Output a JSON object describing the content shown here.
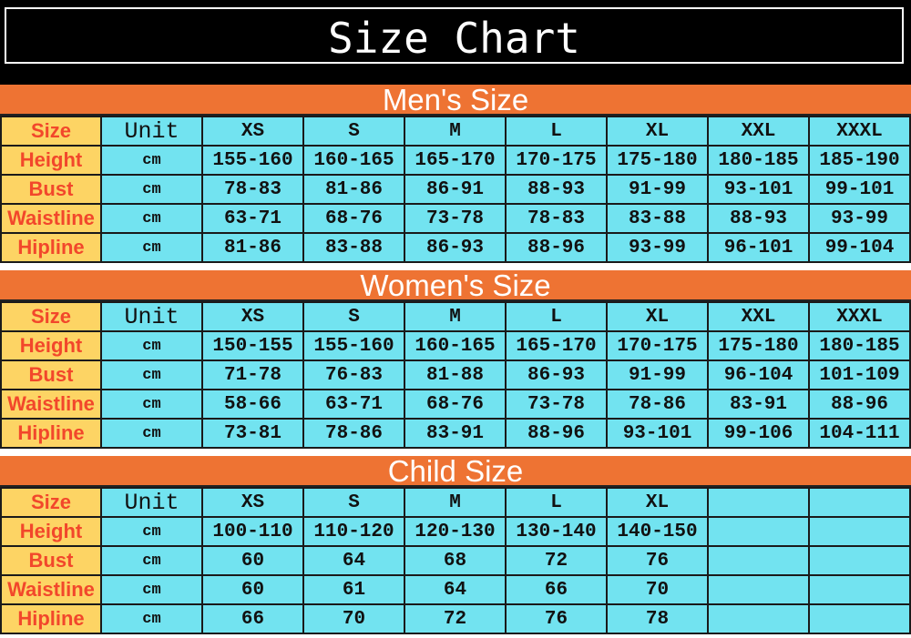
{
  "title": "Size Chart",
  "columns": [
    "Size",
    "Unit",
    "XS",
    "S",
    "M",
    "L",
    "XL",
    "XXL",
    "XXXL"
  ],
  "row_labels": [
    "Height",
    "Bust",
    "Waistline",
    "Hipline"
  ],
  "unit": "cm",
  "sections": [
    {
      "title": "Men's Size",
      "rows": [
        [
          "155-160",
          "160-165",
          "165-170",
          "170-175",
          "175-180",
          "180-185",
          "185-190"
        ],
        [
          "78-83",
          "81-86",
          "86-91",
          "88-93",
          "91-99",
          "93-101",
          "99-101"
        ],
        [
          "63-71",
          "68-76",
          "73-78",
          "78-83",
          "83-88",
          "88-93",
          "93-99"
        ],
        [
          "81-86",
          "83-88",
          "86-93",
          "88-96",
          "93-99",
          "96-101",
          "99-104"
        ]
      ]
    },
    {
      "title": "Women's Size",
      "rows": [
        [
          "150-155",
          "155-160",
          "160-165",
          "165-170",
          "170-175",
          "175-180",
          "180-185"
        ],
        [
          "71-78",
          "76-83",
          "81-88",
          "86-93",
          "91-99",
          "96-104",
          "101-109"
        ],
        [
          "58-66",
          "63-71",
          "68-76",
          "73-78",
          "78-86",
          "83-91",
          "88-96"
        ],
        [
          "73-81",
          "78-86",
          "83-91",
          "88-96",
          "93-101",
          "99-106",
          "104-111"
        ]
      ]
    },
    {
      "title": "Child Size",
      "columns": [
        "Size",
        "Unit",
        "XS",
        "S",
        "M",
        "L",
        "XL",
        "",
        ""
      ],
      "rows": [
        [
          "100-110",
          "110-120",
          "120-130",
          "130-140",
          "140-150",
          "",
          ""
        ],
        [
          "60",
          "64",
          "68",
          "72",
          "76",
          "",
          ""
        ],
        [
          "60",
          "61",
          "64",
          "66",
          "70",
          "",
          ""
        ],
        [
          "66",
          "70",
          "72",
          "76",
          "78",
          "",
          ""
        ]
      ]
    }
  ],
  "colors": {
    "band": "#ee7333",
    "cell": "#72e3f0",
    "label_bg": "#fdd464",
    "label_text": "#f2472b"
  }
}
